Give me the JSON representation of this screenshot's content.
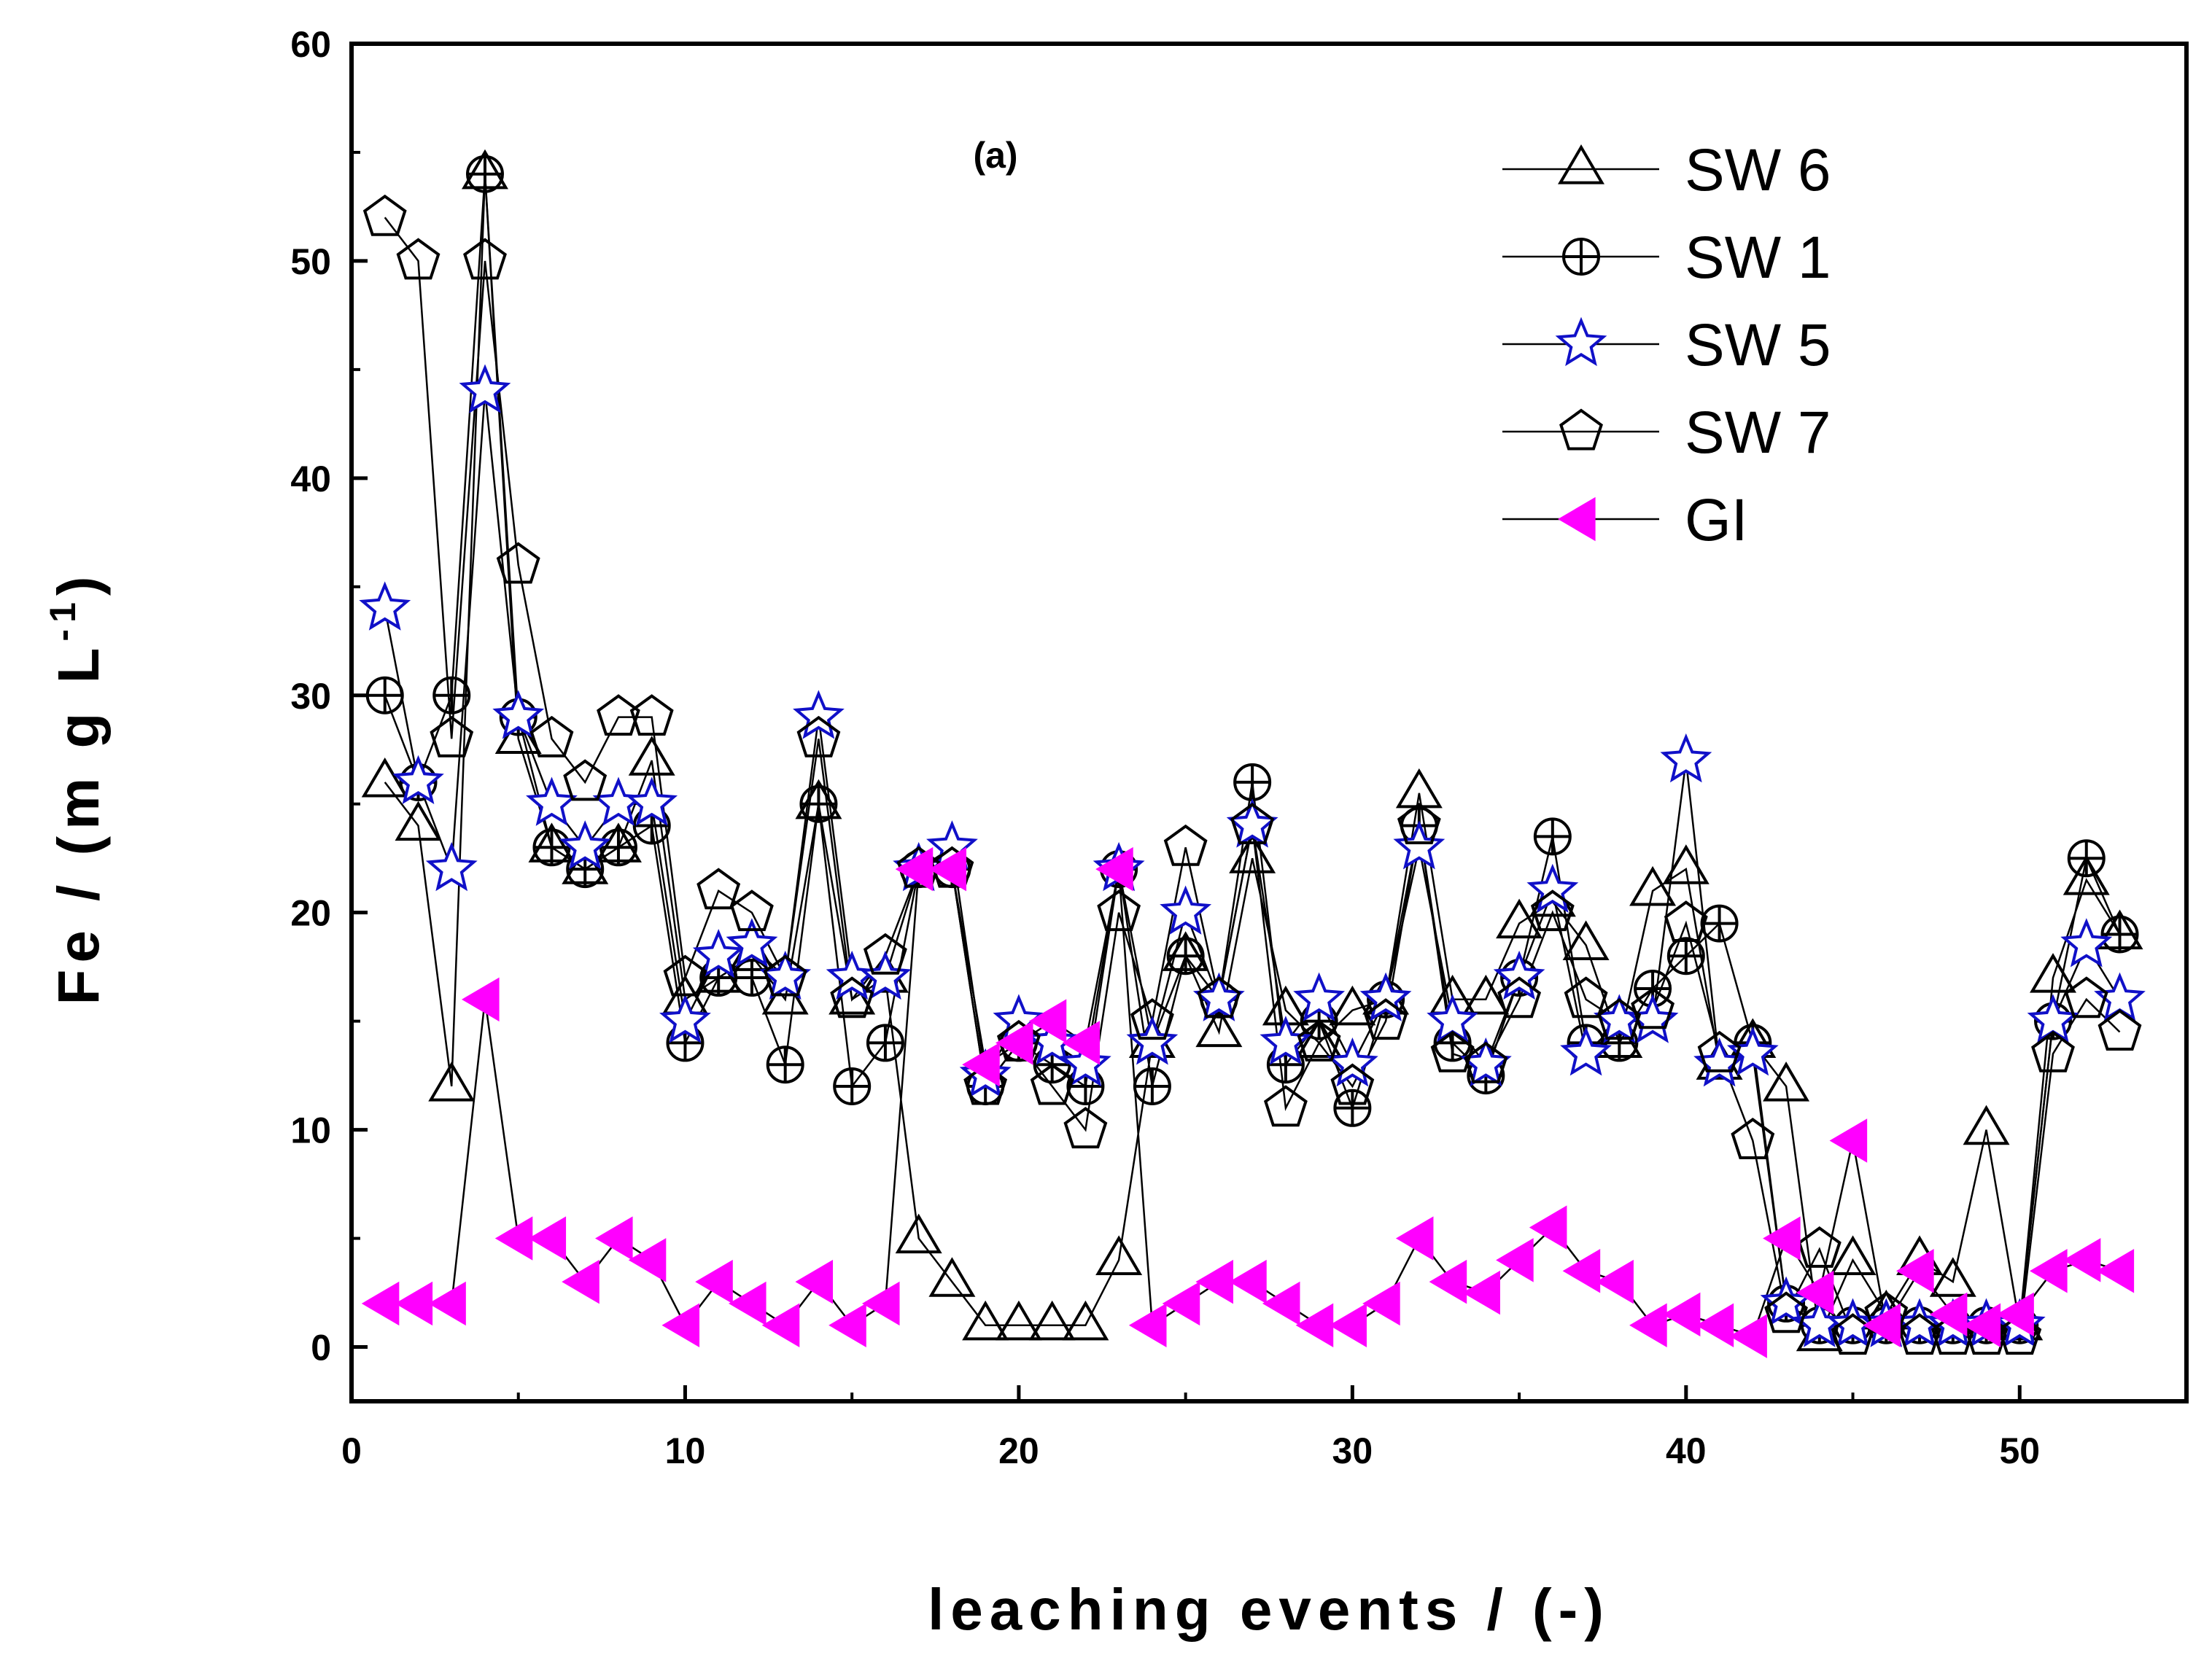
{
  "chart_data": {
    "type": "line",
    "title": "",
    "panel_label": "(a)",
    "xlabel": "leaching events / (-)",
    "ylabel_main": "Fe / (m g L",
    "ylabel_sup": "-1",
    "ylabel_close": ")",
    "xlim": [
      0,
      55
    ],
    "ylim": [
      -2.5,
      60
    ],
    "xticks": [
      0,
      10,
      20,
      30,
      40,
      50
    ],
    "yticks": [
      0,
      10,
      20,
      30,
      40,
      50,
      60
    ],
    "xtick_labels": [
      "0",
      "10",
      "20",
      "30",
      "40",
      "50"
    ],
    "ytick_labels": [
      "0",
      "10",
      "20",
      "30",
      "40",
      "50",
      "60"
    ],
    "grid": false,
    "legend_position": "top-right",
    "series": [
      {
        "name": "SW 6",
        "marker": "triangle-up",
        "color": "#000000",
        "fill": "none",
        "x": [
          1,
          2,
          3,
          4,
          5,
          6,
          7,
          8,
          9,
          10,
          11,
          12,
          13,
          14,
          15,
          16,
          17,
          18,
          19,
          20,
          21,
          22,
          23,
          24,
          25,
          26,
          27,
          28,
          29,
          30,
          31,
          32,
          33,
          34,
          35,
          36,
          37,
          38,
          39,
          40,
          41,
          42,
          43,
          44,
          45,
          46,
          47,
          48,
          49,
          50,
          51,
          52,
          53
        ],
        "values": [
          26,
          24,
          12,
          54,
          28,
          23,
          22,
          23,
          27,
          16,
          17,
          18,
          16,
          25,
          16,
          17,
          5,
          3,
          1,
          1,
          1,
          1,
          4,
          14,
          18,
          14.5,
          22.5,
          15.5,
          14,
          15.5,
          16,
          25.5,
          16,
          16,
          19.5,
          20.5,
          18.5,
          14,
          21,
          22,
          13,
          14,
          12,
          0.5,
          4,
          1.5,
          4,
          3,
          10,
          1,
          17,
          21.5,
          19
        ]
      },
      {
        "name": "SW 1",
        "marker": "circle-plus",
        "color": "#000000",
        "fill": "none",
        "x": [
          1,
          2,
          3,
          4,
          5,
          6,
          7,
          8,
          9,
          10,
          11,
          12,
          13,
          14,
          15,
          16,
          17,
          18,
          19,
          20,
          21,
          22,
          23,
          24,
          25,
          26,
          27,
          28,
          29,
          30,
          31,
          32,
          33,
          34,
          35,
          36,
          37,
          38,
          39,
          40,
          41,
          42,
          43,
          44,
          45,
          46,
          47,
          48,
          49,
          50,
          51,
          52,
          53
        ],
        "values": [
          30,
          26,
          30,
          54,
          29,
          23,
          22,
          23,
          24,
          14,
          17,
          17,
          13,
          25,
          12,
          14,
          22,
          22,
          12,
          14,
          13,
          12,
          22,
          12,
          18,
          16,
          26,
          13,
          15,
          11,
          16,
          24,
          14,
          12.5,
          17,
          23.5,
          14,
          14,
          16.5,
          18,
          19.5,
          14,
          2,
          1,
          1,
          1,
          1,
          1,
          1,
          1,
          15,
          22.5,
          19
        ]
      },
      {
        "name": "SW 5",
        "marker": "star",
        "color": "#1010c8",
        "fill": "#ffffff",
        "x": [
          1,
          2,
          3,
          4,
          5,
          6,
          7,
          8,
          9,
          10,
          11,
          12,
          13,
          14,
          15,
          16,
          17,
          18,
          19,
          20,
          21,
          22,
          23,
          24,
          25,
          26,
          27,
          28,
          29,
          30,
          31,
          32,
          33,
          34,
          35,
          36,
          37,
          38,
          39,
          40,
          41,
          42,
          43,
          44,
          45,
          46,
          47,
          48,
          49,
          50,
          51,
          52,
          53
        ],
        "values": [
          34,
          26,
          22,
          44,
          29,
          25,
          23,
          25,
          25,
          15,
          18,
          18.5,
          17,
          29,
          17,
          17,
          22,
          23,
          12.5,
          15,
          14,
          13,
          22,
          14,
          20,
          16,
          24,
          14,
          16,
          13,
          16,
          23,
          15,
          13,
          17,
          21,
          13.5,
          15,
          15,
          27,
          13,
          13.5,
          2,
          1,
          1,
          1,
          1,
          1,
          1,
          1,
          15,
          18.5,
          16
        ]
      },
      {
        "name": "SW 7",
        "marker": "pentagon",
        "color": "#000000",
        "fill": "none",
        "x": [
          1,
          2,
          3,
          4,
          5,
          6,
          7,
          8,
          9,
          10,
          11,
          12,
          13,
          14,
          15,
          16,
          17,
          18,
          19,
          20,
          21,
          22,
          23,
          24,
          25,
          26,
          27,
          28,
          29,
          30,
          31,
          32,
          33,
          34,
          35,
          36,
          37,
          38,
          39,
          40,
          41,
          42,
          43,
          44,
          45,
          46,
          47,
          48,
          49,
          50,
          51,
          52,
          53
        ],
        "values": [
          52,
          50,
          28,
          50,
          36,
          28,
          26,
          29,
          29,
          17,
          21,
          20,
          17,
          28,
          16,
          18,
          22,
          22,
          12,
          14,
          12,
          10,
          20,
          15,
          23,
          16,
          24,
          11,
          14,
          12,
          15,
          24,
          13.5,
          13,
          16,
          20,
          16,
          15,
          15.5,
          19.5,
          13.5,
          9.5,
          1.5,
          4.5,
          0.5,
          1.5,
          0.5,
          0.5,
          0.5,
          0.5,
          13.5,
          16,
          14.5
        ]
      },
      {
        "name": "GI",
        "marker": "triangle-left",
        "color": "#ff00ff",
        "fill": "#ff00ff",
        "x": [
          1,
          2,
          3,
          4,
          5,
          6,
          7,
          8,
          9,
          10,
          11,
          12,
          13,
          14,
          15,
          16,
          17,
          18,
          19,
          20,
          21,
          22,
          23,
          24,
          25,
          26,
          27,
          28,
          29,
          30,
          31,
          32,
          33,
          34,
          35,
          36,
          37,
          38,
          39,
          40,
          41,
          42,
          43,
          44,
          45,
          46,
          47,
          48,
          49,
          50,
          51,
          52,
          53
        ],
        "values": [
          2,
          2,
          2,
          16,
          5,
          5,
          3,
          5,
          4,
          1,
          3,
          2,
          1,
          3,
          1,
          2,
          22,
          22,
          13,
          14,
          15,
          14,
          22,
          1,
          2,
          3,
          3,
          2,
          1,
          1,
          2,
          5,
          3,
          2.5,
          4,
          5.5,
          3.5,
          3,
          1,
          1.5,
          1,
          0.5,
          5,
          2.5,
          9.5,
          1,
          3.5,
          1.5,
          1,
          1.5,
          3.5,
          4,
          3.5
        ]
      }
    ]
  }
}
